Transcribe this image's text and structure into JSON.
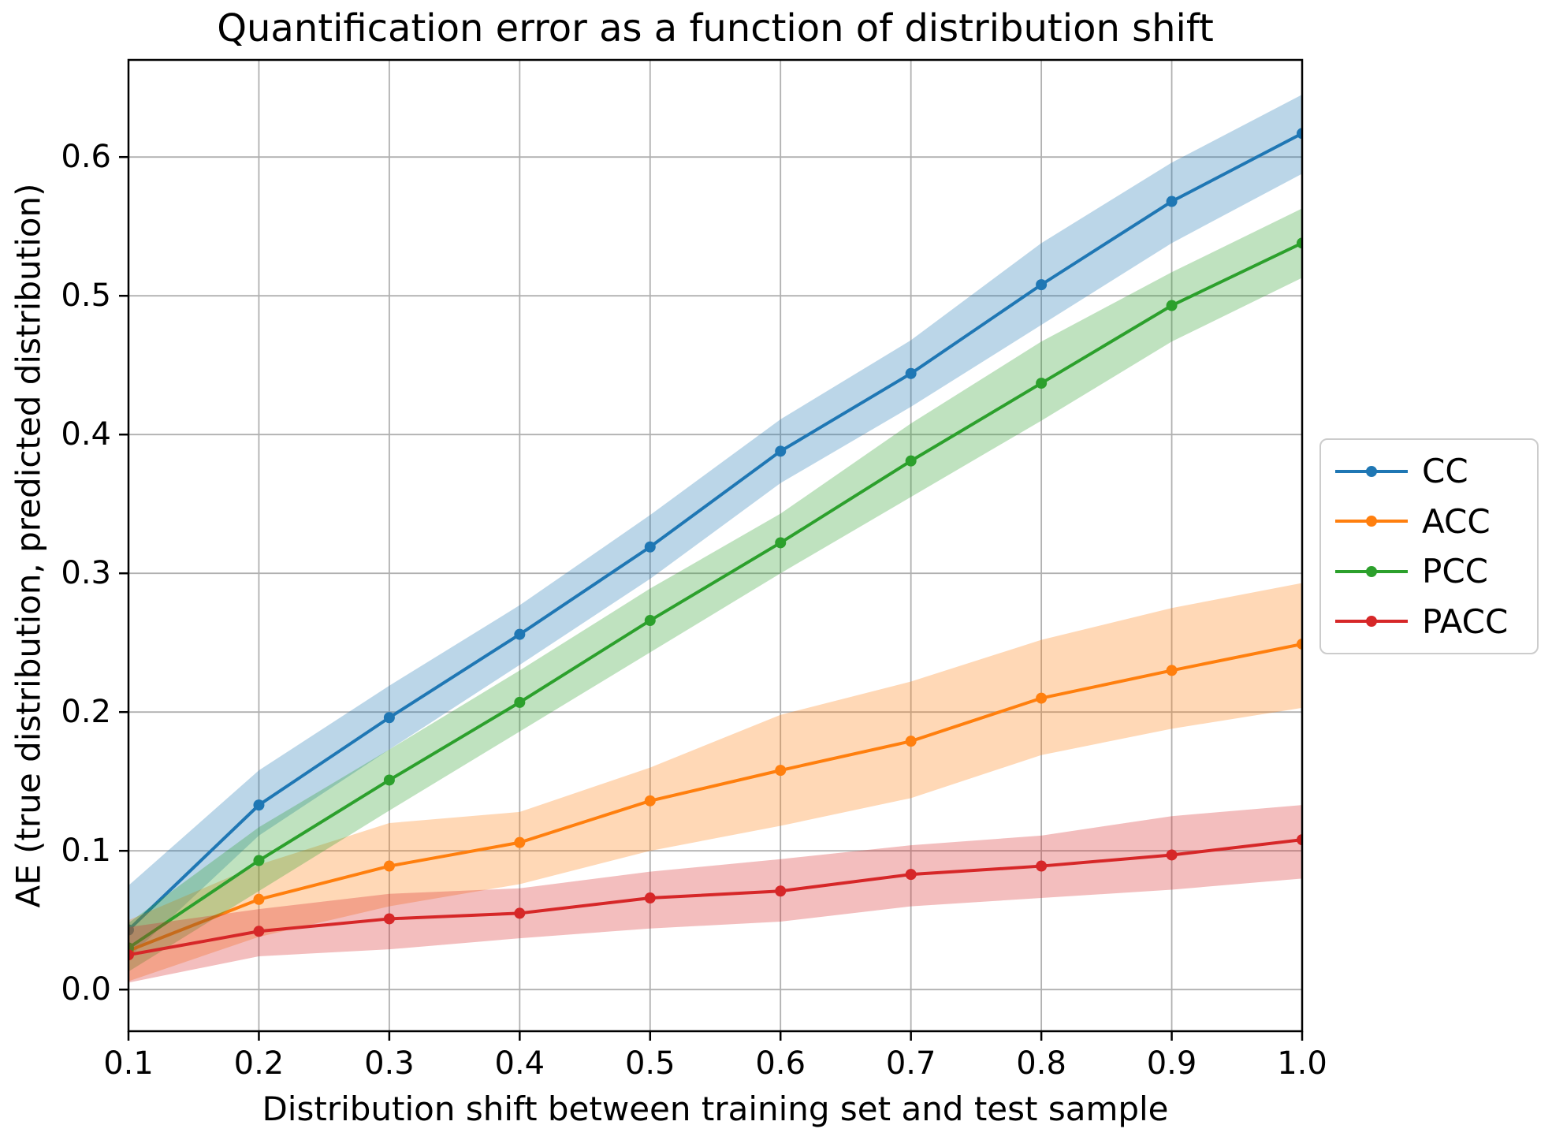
{
  "title": "Quantification error as a function of distribution shift",
  "xlabel": "Distribution shift between training set and test sample",
  "ylabel": "AE (true distribution, predicted distribution)",
  "chart_data": {
    "type": "line",
    "x": [
      0.1,
      0.2,
      0.3,
      0.4,
      0.5,
      0.6,
      0.7,
      0.8,
      0.9,
      1.0
    ],
    "series": [
      {
        "name": "CC",
        "color": "#1f77b4",
        "values": [
          0.043,
          0.133,
          0.196,
          0.256,
          0.319,
          0.388,
          0.444,
          0.508,
          0.568,
          0.617
        ],
        "band_lo": [
          0.023,
          0.111,
          0.173,
          0.234,
          0.296,
          0.365,
          0.42,
          0.479,
          0.538,
          0.588
        ],
        "band_hi": [
          0.075,
          0.158,
          0.219,
          0.277,
          0.342,
          0.411,
          0.468,
          0.538,
          0.596,
          0.645
        ]
      },
      {
        "name": "ACC",
        "color": "#ff7f0e",
        "values": [
          0.028,
          0.065,
          0.089,
          0.106,
          0.136,
          0.158,
          0.179,
          0.21,
          0.23,
          0.249
        ],
        "band_lo": [
          0.006,
          0.038,
          0.06,
          0.076,
          0.1,
          0.118,
          0.138,
          0.169,
          0.188,
          0.203
        ],
        "band_hi": [
          0.05,
          0.09,
          0.12,
          0.128,
          0.16,
          0.198,
          0.222,
          0.252,
          0.275,
          0.293
        ]
      },
      {
        "name": "PCC",
        "color": "#2ca02c",
        "values": [
          0.03,
          0.093,
          0.151,
          0.207,
          0.266,
          0.322,
          0.381,
          0.437,
          0.493,
          0.538
        ],
        "band_lo": [
          0.013,
          0.071,
          0.129,
          0.186,
          0.243,
          0.3,
          0.355,
          0.41,
          0.467,
          0.513
        ],
        "band_hi": [
          0.048,
          0.117,
          0.173,
          0.23,
          0.289,
          0.343,
          0.408,
          0.467,
          0.517,
          0.563
        ]
      },
      {
        "name": "PACC",
        "color": "#d62728",
        "values": [
          0.025,
          0.042,
          0.051,
          0.055,
          0.066,
          0.071,
          0.083,
          0.089,
          0.097,
          0.108
        ],
        "band_lo": [
          0.005,
          0.024,
          0.029,
          0.037,
          0.044,
          0.049,
          0.06,
          0.066,
          0.072,
          0.08
        ],
        "band_hi": [
          0.045,
          0.058,
          0.069,
          0.073,
          0.085,
          0.094,
          0.104,
          0.111,
          0.125,
          0.133
        ]
      }
    ],
    "x_tick_labels": [
      "0.1",
      "0.2",
      "0.3",
      "0.4",
      "0.5",
      "0.6",
      "0.7",
      "0.8",
      "0.9",
      "1.0"
    ],
    "y_tick_labels": [
      "0.0",
      "0.1",
      "0.2",
      "0.3",
      "0.4",
      "0.5",
      "0.6"
    ],
    "y_tick_values": [
      0.0,
      0.1,
      0.2,
      0.3,
      0.4,
      0.5,
      0.6
    ],
    "xlim": [
      0.1,
      1.0
    ],
    "ylim": [
      -0.03,
      0.67
    ],
    "grid": true,
    "band_alpha": 0.3,
    "legend_position": "right-outside"
  },
  "style_colors": {
    "grid": "#b0b0b0",
    "spine": "#000000",
    "legend_border": "#cccccc",
    "background": "#ffffff"
  }
}
